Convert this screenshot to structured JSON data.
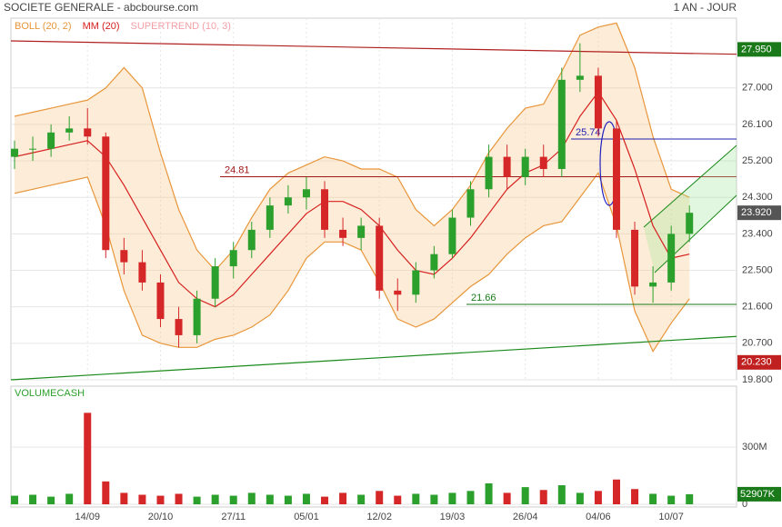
{
  "header": {
    "title": "SOCIETE GENERALE - abcbourse.com",
    "period": "1 AN - JOUR"
  },
  "chart_data": {
    "type": "candlestick",
    "legend": [
      {
        "name": "BOLL (20, 2)",
        "color": "#e8963a"
      },
      {
        "name": "MM (20)",
        "color": "#d62020"
      },
      {
        "name": "SUPERTREND (10, 3)",
        "color": "#f4a0a8"
      }
    ],
    "categories": [
      null,
      null,
      null,
      null,
      "14/09",
      null,
      null,
      null,
      "20/10",
      null,
      null,
      null,
      "27/11",
      null,
      null,
      null,
      "05/01",
      null,
      null,
      null,
      "12/02",
      null,
      null,
      null,
      "19/03",
      null,
      null,
      null,
      "26/04",
      null,
      null,
      null,
      "04/06",
      null,
      null,
      null,
      "10/07",
      null
    ],
    "open": [
      25.3,
      25.5,
      25.5,
      25.9,
      26.0,
      25.8,
      23.0,
      22.7,
      22.2,
      21.3,
      20.9,
      21.8,
      22.6,
      23.0,
      23.5,
      24.1,
      24.3,
      24.5,
      23.5,
      23.3,
      23.6,
      22.0,
      21.9,
      22.5,
      22.9,
      23.8,
      24.5,
      25.3,
      24.8,
      25.3,
      25.0,
      27.2,
      27.3,
      26.0,
      23.5,
      22.1,
      22.2,
      23.4
    ],
    "high": [
      25.7,
      25.8,
      26.1,
      26.3,
      26.5,
      25.9,
      23.3,
      23.0,
      22.4,
      21.6,
      22.0,
      22.8,
      23.2,
      23.7,
      24.3,
      24.6,
      24.8,
      24.7,
      23.8,
      23.8,
      23.8,
      22.3,
      22.7,
      23.1,
      24.0,
      24.7,
      25.6,
      25.6,
      25.5,
      25.6,
      27.5,
      28.1,
      27.5,
      26.2,
      23.7,
      22.6,
      23.6,
      24.1
    ],
    "low": [
      25.0,
      25.2,
      25.3,
      25.7,
      25.6,
      22.8,
      22.4,
      22.0,
      21.1,
      20.6,
      20.7,
      21.6,
      22.3,
      22.8,
      23.3,
      23.9,
      24.0,
      23.3,
      23.1,
      23.0,
      21.8,
      21.5,
      21.7,
      22.3,
      22.8,
      23.6,
      24.3,
      24.5,
      24.6,
      24.8,
      24.8,
      26.9,
      25.8,
      23.3,
      21.9,
      21.7,
      22.0,
      23.2
    ],
    "close": [
      25.5,
      25.5,
      25.9,
      26.0,
      25.8,
      23.0,
      22.7,
      22.2,
      21.3,
      20.9,
      21.8,
      22.6,
      23.0,
      23.5,
      24.1,
      24.3,
      24.5,
      23.5,
      23.3,
      23.6,
      22.0,
      21.9,
      22.5,
      22.9,
      23.8,
      24.5,
      25.3,
      24.8,
      25.3,
      25.0,
      27.2,
      27.3,
      26.0,
      23.5,
      22.1,
      22.2,
      23.4,
      23.92
    ],
    "mm20": [
      25.3,
      25.4,
      25.5,
      25.6,
      25.7,
      25.3,
      24.6,
      23.8,
      23.0,
      22.2,
      21.8,
      21.6,
      21.9,
      22.4,
      22.9,
      23.4,
      23.9,
      24.2,
      24.2,
      24.0,
      23.6,
      23.0,
      22.5,
      22.4,
      22.8,
      23.3,
      23.9,
      24.5,
      24.9,
      25.1,
      25.5,
      26.3,
      26.9,
      26.2,
      25.0,
      23.6,
      22.8,
      22.9
    ],
    "boll_upper": [
      26.3,
      26.4,
      26.5,
      26.6,
      26.7,
      27.0,
      27.5,
      27.0,
      25.4,
      24.0,
      23.0,
      22.5,
      23.0,
      23.8,
      24.5,
      24.9,
      25.1,
      25.3,
      25.2,
      25.0,
      25.0,
      24.8,
      24.0,
      23.6,
      24.0,
      24.6,
      25.4,
      26.0,
      26.5,
      26.6,
      27.4,
      28.3,
      28.5,
      28.6,
      27.5,
      25.8,
      24.5,
      24.3
    ],
    "boll_lower": [
      24.4,
      24.5,
      24.6,
      24.7,
      24.8,
      23.6,
      22.0,
      20.9,
      20.7,
      20.6,
      20.6,
      20.8,
      20.9,
      21.1,
      21.4,
      22.0,
      22.8,
      23.2,
      23.2,
      23.0,
      22.2,
      21.3,
      21.1,
      21.3,
      21.7,
      22.1,
      22.4,
      22.9,
      23.3,
      23.6,
      23.7,
      24.3,
      24.9,
      23.6,
      21.5,
      20.5,
      21.2,
      21.8
    ],
    "ylim": [
      19.8,
      28.72
    ],
    "yticks": [
      {
        "value": 19.8,
        "label": "19.800"
      },
      {
        "value": 20.7,
        "label": "20.700"
      },
      {
        "value": 21.6,
        "label": "21.600"
      },
      {
        "value": 22.5,
        "label": "22.500"
      },
      {
        "value": 23.4,
        "label": "23.400"
      },
      {
        "value": 24.3,
        "label": "24.300"
      },
      {
        "value": 25.2,
        "label": "25.200"
      },
      {
        "value": 26.1,
        "label": "26.100"
      },
      {
        "value": 27,
        "label": "27.000"
      }
    ],
    "levels": [
      {
        "value": 24.81,
        "color": "#a01818"
      },
      {
        "value": 25.74,
        "color": "#2020b0"
      },
      {
        "value": 21.66,
        "color": "#1a7a1a"
      }
    ],
    "trendlines": [
      {
        "start": 28.16,
        "end": 27.83,
        "color": "#b02020"
      },
      {
        "start": 19.8,
        "end": 20.87,
        "color": "#1a8a1a"
      }
    ],
    "price_labels": [
      {
        "value": 27.95,
        "label": "27.950",
        "color": "#1a7a1a"
      },
      {
        "value": 23.92,
        "label": "23.920",
        "color": "#555555"
      },
      {
        "value": 20.23,
        "label": "20.230",
        "color": "#c02020"
      }
    ],
    "volume_title": "VOLUMECASH",
    "volume": [
      45000000,
      50000000,
      40000000,
      55000000,
      480000000,
      120000000,
      60000000,
      50000000,
      45000000,
      55000000,
      40000000,
      50000000,
      45000000,
      60000000,
      50000000,
      45000000,
      55000000,
      40000000,
      60000000,
      50000000,
      70000000,
      45000000,
      55000000,
      50000000,
      60000000,
      70000000,
      110000000,
      60000000,
      90000000,
      75000000,
      100000000,
      60000000,
      70000000,
      130000000,
      80000000,
      55000000,
      45000000,
      52907000
    ],
    "volume_label": "52907K",
    "vlim": [
      0,
      620000000
    ],
    "vticks": [
      0,
      {
        "value": 300000000,
        "label": "300M"
      }
    ]
  }
}
